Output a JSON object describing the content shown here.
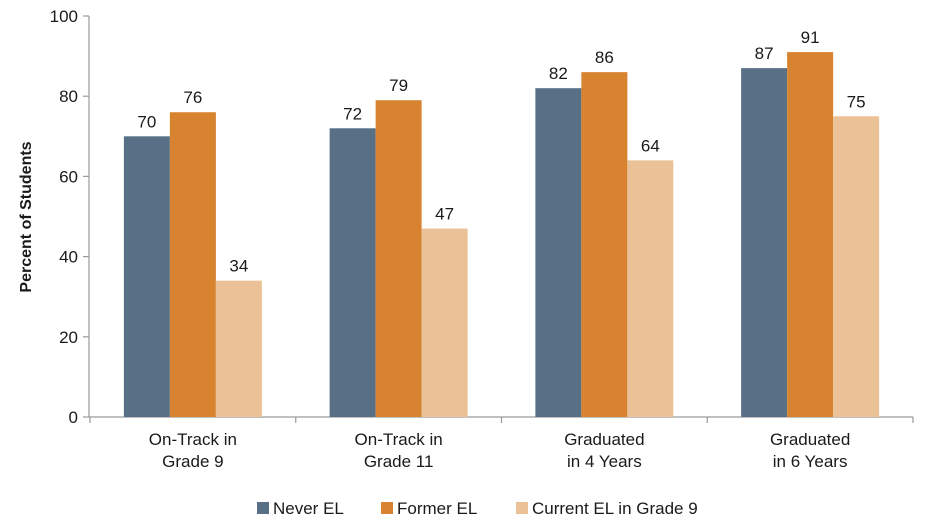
{
  "chart_data": {
    "type": "bar",
    "title": "",
    "xlabel": "",
    "ylabel": "Percent of Students",
    "ylim": [
      0,
      100
    ],
    "yticks": [
      0,
      20,
      40,
      60,
      80,
      100
    ],
    "grid": false,
    "legend_position": "bottom",
    "categories": [
      [
        "On-Track in",
        "Grade 9"
      ],
      [
        "On-Track in",
        "Grade 11"
      ],
      [
        "Graduated",
        "in 4 Years"
      ],
      [
        "Graduated",
        "in 6 Years"
      ]
    ],
    "series": [
      {
        "name": "Never EL",
        "color": "#587085",
        "values": [
          70,
          72,
          82,
          87
        ],
        "labels": [
          "70",
          "72",
          "82",
          "87"
        ]
      },
      {
        "name": "Former EL",
        "color": "#D88330",
        "values": [
          76,
          79,
          86,
          91
        ],
        "labels": [
          "76",
          "79",
          "86",
          "91"
        ]
      },
      {
        "name": "Current EL in Grade 9",
        "color": "#EBC298",
        "values": [
          34,
          47,
          64,
          75
        ],
        "labels": [
          "34",
          "47",
          "64",
          "75"
        ]
      }
    ]
  }
}
